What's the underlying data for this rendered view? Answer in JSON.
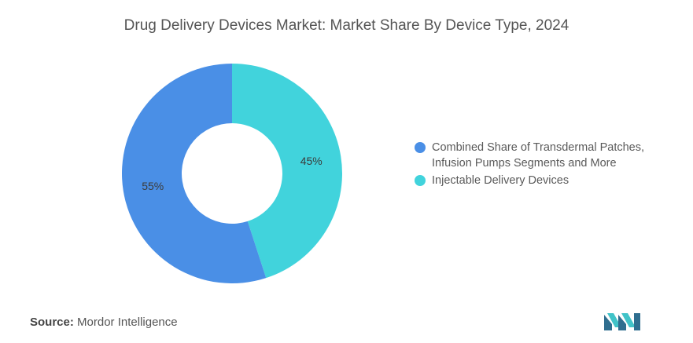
{
  "chart_data": {
    "type": "pie",
    "title": "Drug Delivery Devices Market: Market Share By Device Type, 2024",
    "donut": true,
    "slices": [
      {
        "label": "Injectable Delivery Devices",
        "value": 45,
        "display": "45%",
        "color": "#41d3dc"
      },
      {
        "label": "Combined Share of Transdermal Patches, Infusion Pumps Segments and More",
        "value": 55,
        "display": "55%",
        "color": "#4a8fe6"
      }
    ],
    "legend": [
      {
        "lines": [
          "Combined Share of Transdermal Patches,",
          "Infusion Pumps Segments and More"
        ],
        "color": "#4a8fe6"
      },
      {
        "lines": [
          "Injectable Delivery Devices"
        ],
        "color": "#41d3dc"
      }
    ],
    "legend_position": "right"
  },
  "footer": {
    "source_label": "Source:",
    "source_value": "Mordor Intelligence"
  },
  "logo": {
    "name": "mordor-intelligence-logo",
    "colors": [
      "#2f6e8f",
      "#41c3c8"
    ]
  }
}
